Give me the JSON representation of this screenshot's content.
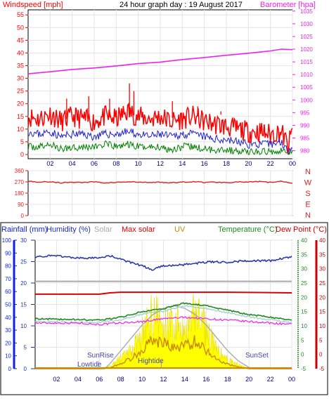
{
  "colors": {
    "wind": "#ff0000",
    "wind_avg": "#2222cc",
    "wind_low": "#008000",
    "barometer": "#ee22ee",
    "direction": "#dd2222",
    "rainfall": "#1122dd",
    "humidity": "#2233aa",
    "solar": "#aaaaaa",
    "max_solar": "#dd0000",
    "uv": "#cc8800",
    "temperature": "#228822",
    "dewpoint": "#cc0000",
    "sun_fill": "#ffff00",
    "frame": "#000000"
  },
  "header": {
    "windspeed_label": "Windspeed [mph]",
    "title": "24 hour graph day : 19 August 2017",
    "barometer_label": "Barometer [hpa]"
  },
  "legend": {
    "rainfall": "Rainfall (mm)",
    "humidity": "Humidity (%)",
    "solar": "Solar",
    "max_solar": "Max solar",
    "uv": "UV",
    "temperature": "Temperature (°C)",
    "dewpoint": "Dew Point (°C)"
  },
  "annotations": {
    "sunrise": "SunRise",
    "sunset": "SunSet",
    "lowtide": "Lowtide",
    "hightide": "Hightide"
  },
  "chart_data": [
    {
      "id": "wind-baro",
      "type": "line",
      "title": "24 hour graph day : 19 August 2017",
      "x_ticks": [
        "02",
        "04",
        "06",
        "08",
        "10",
        "12",
        "14",
        "16",
        "18",
        "20",
        "22",
        "00"
      ],
      "xlim": [
        0,
        24
      ],
      "y_left": {
        "label": "Windspeed [mph]",
        "ticks": [
          0,
          5,
          10,
          15,
          20,
          25,
          30,
          35,
          40,
          45,
          50,
          55
        ],
        "lim": [
          0,
          57
        ]
      },
      "y_right": {
        "label": "Barometer [hpa]",
        "ticks": [
          980,
          985,
          990,
          995,
          1000,
          1005,
          1010,
          1015,
          1020,
          1025,
          1030,
          1035
        ],
        "lim": [
          978.5,
          1035.5
        ]
      },
      "series": [
        {
          "name": "Windspeed [mph]",
          "kind": "gust",
          "x": [
            0,
            1,
            2,
            3,
            4,
            5,
            6,
            7,
            8,
            9,
            10,
            11,
            12,
            13,
            14,
            15,
            16,
            17,
            18,
            19,
            20,
            21,
            22,
            23,
            23.6,
            24
          ],
          "values": [
            15,
            14,
            16,
            13,
            15,
            14,
            13,
            15,
            14,
            17,
            15,
            14,
            15,
            13,
            14,
            15,
            13,
            12,
            11,
            10,
            9,
            9,
            8,
            9,
            3,
            9
          ]
        },
        {
          "name": "Windspeed [mph]",
          "kind": "average",
          "x": [
            0,
            1,
            2,
            3,
            4,
            5,
            6,
            7,
            8,
            9,
            10,
            11,
            12,
            13,
            14,
            15,
            16,
            17,
            18,
            19,
            20,
            21,
            22,
            23,
            23.6,
            24
          ],
          "values": [
            9,
            8,
            9,
            7,
            8,
            8,
            7,
            8,
            8,
            9,
            8,
            7,
            8,
            7,
            8,
            8,
            7,
            6,
            6,
            5,
            4,
            4,
            4,
            5,
            1,
            4
          ]
        },
        {
          "name": "Windspeed [mph]",
          "kind": "low",
          "x": [
            0,
            1,
            2,
            3,
            4,
            5,
            6,
            7,
            8,
            9,
            10,
            11,
            12,
            13,
            14,
            15,
            16,
            17,
            18,
            19,
            20,
            21,
            22,
            23,
            23.6,
            24
          ],
          "values": [
            3,
            3,
            4,
            2,
            3,
            3,
            3,
            4,
            3,
            4,
            3,
            3,
            3,
            2,
            3,
            3,
            2,
            2,
            2,
            1,
            1,
            1,
            1,
            2,
            0,
            1
          ]
        },
        {
          "name": "Barometer [hpa]",
          "x": [
            0,
            2,
            4,
            6,
            8,
            10,
            12,
            14,
            16,
            18,
            20,
            22,
            23,
            24
          ],
          "values": [
            1010.3,
            1011.1,
            1012.0,
            1012.6,
            1013.4,
            1014.3,
            1014.9,
            1015.9,
            1016.7,
            1017.6,
            1018.4,
            1019.3,
            1020.0,
            1019.8
          ]
        }
      ]
    },
    {
      "id": "direction",
      "type": "line",
      "x_ticks": [
        "02",
        "04",
        "06",
        "08",
        "10",
        "12",
        "14",
        "16",
        "18",
        "20",
        "22",
        "00"
      ],
      "xlim": [
        0,
        24
      ],
      "y_left": {
        "ticks": [
          0,
          90,
          180,
          270,
          360
        ],
        "lim": [
          0,
          360
        ]
      },
      "y_right_labels": [
        "N",
        "W",
        "S",
        "E",
        "N"
      ],
      "series": [
        {
          "name": "Wind direction",
          "x": [
            0,
            1,
            2,
            3,
            4,
            5,
            6,
            7,
            8,
            9,
            10,
            11,
            12,
            13,
            14,
            15,
            16,
            17,
            18,
            19,
            20,
            21,
            22,
            23,
            24
          ],
          "values": [
            275,
            268,
            272,
            262,
            268,
            265,
            270,
            262,
            266,
            270,
            268,
            264,
            268,
            262,
            268,
            272,
            266,
            268,
            264,
            270,
            268,
            272,
            266,
            274,
            262
          ]
        }
      ]
    },
    {
      "id": "climate",
      "type": "line",
      "x_ticks": [
        "02",
        "04",
        "06",
        "08",
        "10",
        "12",
        "14",
        "16",
        "18",
        "20",
        "22",
        "00"
      ],
      "xlim": [
        0,
        24
      ],
      "y_rain": {
        "label": "Rainfall (mm)",
        "ticks": [
          0,
          10,
          20,
          30,
          40,
          50,
          60,
          70,
          80,
          90,
          100
        ],
        "lim": [
          0,
          100
        ]
      },
      "y_humidity": {
        "label": "Humidity (%)",
        "ticks": [
          0,
          5,
          10,
          15,
          20,
          25,
          30
        ],
        "lim": [
          0,
          30
        ]
      },
      "y_temperature": {
        "label": "Temperature (°C)",
        "ticks": [
          -5,
          0,
          5,
          10,
          15,
          20,
          25,
          30,
          35,
          40
        ],
        "lim": [
          -5,
          40
        ]
      },
      "y_dewpoint": {
        "label": "Dew Point (°C)",
        "ticks": [
          -5,
          0,
          5,
          10,
          15,
          20,
          25,
          30,
          35,
          40
        ],
        "lim": [
          -5,
          40
        ]
      },
      "series": [
        {
          "name": "Humidity (%)",
          "x": [
            0,
            2,
            4,
            6,
            7,
            8,
            10,
            11,
            12,
            14,
            16,
            18,
            20,
            22,
            24
          ],
          "values": [
            87,
            88,
            86,
            86,
            88,
            85,
            80,
            77,
            80,
            81,
            83,
            83,
            84,
            84,
            87
          ]
        },
        {
          "name": "Solar",
          "x": [
            0,
            6,
            7,
            12,
            18,
            24
          ],
          "values": [
            68,
            68,
            68,
            68,
            68,
            68
          ]
        },
        {
          "name": "Max solar",
          "x": [
            0,
            6,
            7,
            8,
            12,
            18,
            24
          ],
          "values": [
            58,
            58,
            59,
            59.5,
            59.5,
            59.5,
            59
          ]
        },
        {
          "name": "Temperature (°C)",
          "x": [
            0,
            2,
            4,
            6,
            8,
            10,
            12,
            13,
            14,
            15,
            16,
            18,
            20,
            22,
            24
          ],
          "values": [
            12.5,
            12.3,
            12.2,
            12.0,
            13.0,
            15.0,
            16.0,
            17.0,
            18.0,
            17.5,
            17.0,
            15.5,
            14.0,
            13.0,
            12.0
          ]
        },
        {
          "name": "Dew Point (°C)",
          "x": [
            0,
            2,
            4,
            6,
            8,
            10,
            12,
            14,
            16,
            18,
            20,
            22,
            24
          ],
          "values": [
            11.0,
            11.0,
            11.0,
            10.5,
            11.0,
            11.5,
            12.5,
            13.0,
            12.5,
            12.0,
            11.5,
            11.0,
            10.5
          ]
        },
        {
          "name": "UV",
          "x": [
            0,
            6,
            7,
            8,
            9,
            10,
            11,
            12,
            13,
            14,
            15,
            16,
            17,
            18,
            19,
            20,
            24
          ],
          "values": [
            0,
            0,
            0.1,
            0.6,
            1.2,
            2.2,
            3.4,
            3.0,
            2.4,
            2.7,
            3.2,
            2.2,
            1.1,
            0.5,
            0.2,
            0,
            0
          ]
        },
        {
          "name": "Solar radiation",
          "x": [
            0,
            6,
            7,
            8,
            9,
            10,
            10.5,
            11,
            11.5,
            12,
            12.5,
            13,
            13.5,
            14,
            14.5,
            15,
            15.3,
            16,
            17,
            18,
            19,
            20,
            24
          ],
          "values": [
            0,
            0,
            2,
            8,
            14,
            28,
            34,
            46,
            40,
            28,
            38,
            30,
            44,
            24,
            32,
            46,
            42,
            30,
            14,
            7,
            3,
            0,
            0
          ]
        },
        {
          "name": "Max solar",
          "kind": "curve",
          "x": [
            0,
            6.5,
            7,
            8,
            9,
            10,
            11,
            12,
            13,
            14,
            15,
            16,
            17,
            18,
            19,
            20,
            20.5,
            24
          ],
          "values": [
            0,
            0,
            4,
            14,
            24,
            34,
            42,
            47,
            49,
            47,
            42,
            34,
            24,
            14,
            6,
            1,
            0,
            0
          ]
        },
        {
          "name": "Rainfall (mm)",
          "x": [
            0,
            24
          ],
          "values": [
            0,
            0
          ]
        }
      ]
    }
  ]
}
